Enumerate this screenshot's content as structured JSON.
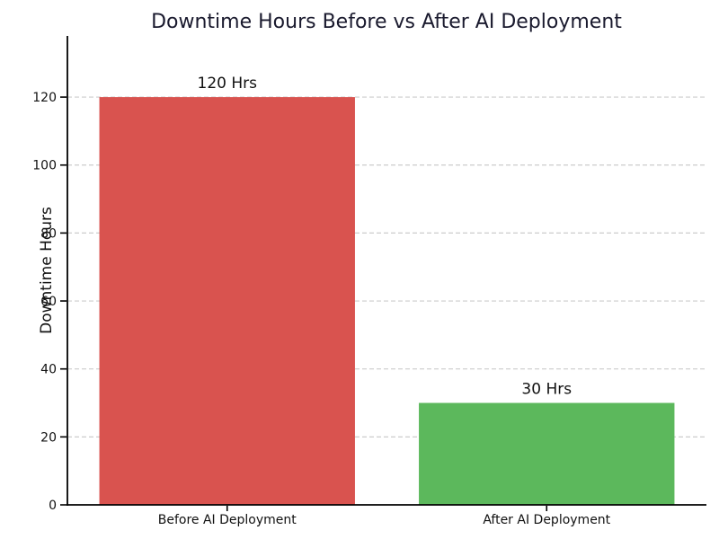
{
  "figure": {
    "background": "#ffffff"
  },
  "chart_data": {
    "type": "bar",
    "title": "Downtime Hours Before vs After AI Deployment",
    "title_color": "#1a1a2e",
    "categories": [
      "Before AI Deployment",
      "After AI Deployment"
    ],
    "values": [
      120,
      30
    ],
    "bar_labels": [
      "120 Hrs",
      "30 Hrs"
    ],
    "bar_colors": [
      "#d9534f",
      "#5cb85c"
    ],
    "xlabel": "",
    "ylabel": "Downtime Hours",
    "ylim": [
      0,
      138
    ],
    "yticks": [
      0,
      20,
      40,
      60,
      80,
      100,
      120
    ],
    "bar_width_fraction": 0.8,
    "grid": "horizontal-dashed",
    "grid_color": "#cccccc",
    "axis_color": "#000000",
    "legend_position": "none"
  }
}
